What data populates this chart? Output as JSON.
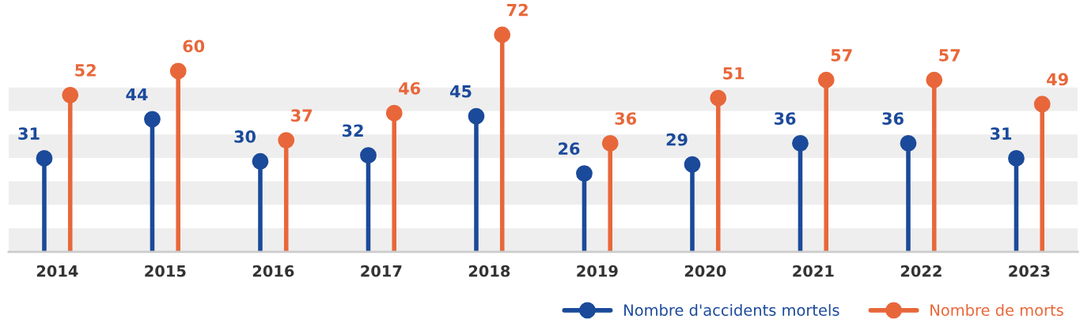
{
  "chart_data": {
    "type": "lollipop",
    "categories": [
      "2014",
      "2015",
      "2016",
      "2017",
      "2018",
      "2019",
      "2020",
      "2021",
      "2022",
      "2023"
    ],
    "series": [
      {
        "name": "Nombre d'accidents mortels",
        "color": "#1b4a9a",
        "values": [
          31,
          44,
          30,
          32,
          45,
          26,
          29,
          36,
          36,
          31
        ]
      },
      {
        "name": "Nombre de morts",
        "color": "#e8673a",
        "values": [
          52,
          60,
          37,
          46,
          72,
          36,
          51,
          57,
          57,
          49
        ]
      }
    ],
    "tick_labels": "x",
    "data_labels": true,
    "legend": "bottom right",
    "marker": "circle",
    "grid": false,
    "bands": [
      {
        "axis": "y",
        "from": 0,
        "to": 7.8,
        "color": "#eeeeee"
      },
      {
        "axis": "y",
        "from": 15.6,
        "to": 23.4,
        "color": "#eeeeee"
      },
      {
        "axis": "y",
        "from": 31.1,
        "to": 38.9,
        "color": "#eeeeee"
      },
      {
        "axis": "y",
        "from": 46.7,
        "to": 54.5,
        "color": "#eeeeee"
      }
    ]
  }
}
